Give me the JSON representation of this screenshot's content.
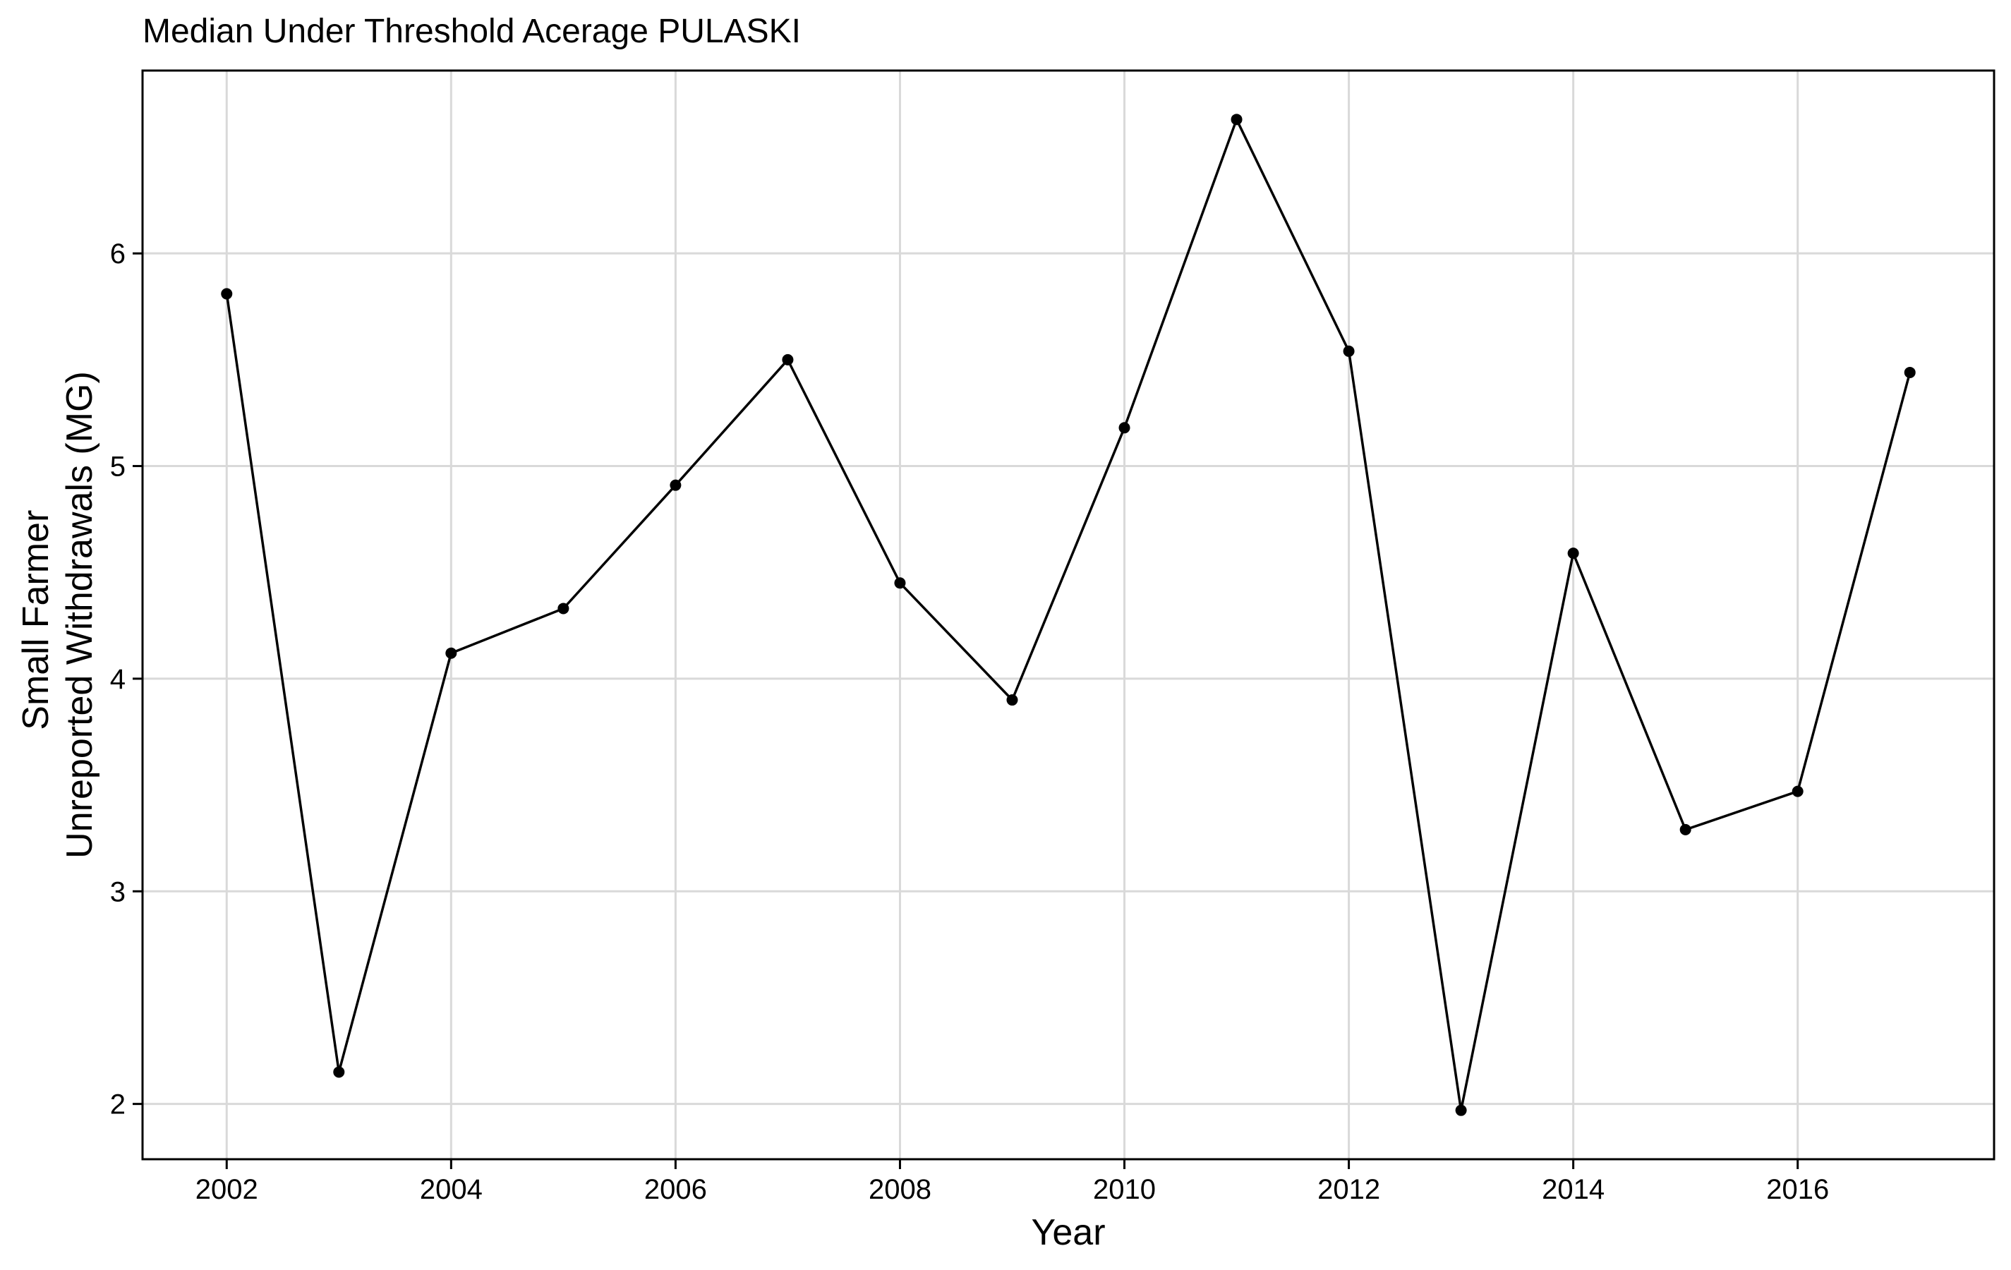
{
  "chart_data": {
    "type": "line",
    "title": "Median Under Threshold Acerage PULASKI",
    "xlabel": "Year",
    "ylabel": [
      "Small Farmer",
      "Unreported Withdrawals (MG)"
    ],
    "x": [
      2002,
      2003,
      2004,
      2005,
      2006,
      2007,
      2008,
      2009,
      2010,
      2011,
      2012,
      2013,
      2014,
      2015,
      2016,
      2017
    ],
    "series": [
      {
        "values": [
          5.81,
          2.15,
          4.12,
          4.33,
          4.91,
          5.5,
          4.45,
          3.9,
          5.18,
          6.63,
          5.54,
          1.97,
          4.59,
          3.29,
          3.47,
          5.44
        ]
      }
    ],
    "x_ticks": [
      2002,
      2004,
      2006,
      2008,
      2010,
      2012,
      2014,
      2016
    ],
    "y_ticks": [
      2,
      3,
      4,
      5,
      6
    ],
    "xlim": [
      2001.25,
      2017.75
    ],
    "ylim": [
      1.74,
      6.86
    ],
    "grid": true,
    "legend": "none",
    "colors": {
      "line": "#000000",
      "grid": "#d9d9d9",
      "background": "#ffffff"
    }
  }
}
